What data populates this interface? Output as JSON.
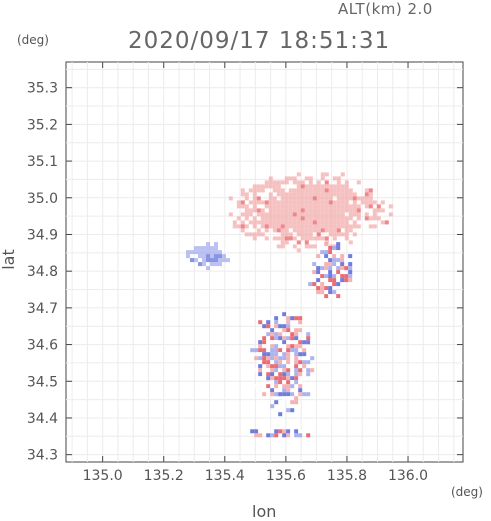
{
  "header": {
    "altitude_label": "ALT(km)  2.0",
    "timestamp": "2020/09/17 18:51:31"
  },
  "axes": {
    "x_unit": "(deg)",
    "y_unit": "(deg)",
    "xlabel": "lon",
    "ylabel": "lat"
  },
  "chart_data": {
    "type": "heatmap",
    "xlabel": "lon",
    "ylabel": "lat",
    "xlim": [
      134.88,
      136.18
    ],
    "ylim": [
      34.28,
      35.37
    ],
    "x_ticks": [
      135.0,
      135.2,
      135.4,
      135.6,
      135.8,
      136.0
    ],
    "x_tick_labels": [
      "135.0",
      "135.2",
      "135.4",
      "135.6",
      "135.8",
      "136.0"
    ],
    "y_ticks": [
      34.3,
      34.4,
      34.5,
      34.6,
      34.7,
      34.8,
      34.9,
      35.0,
      35.1,
      35.2,
      35.3
    ],
    "y_tick_labels": [
      "34.3",
      "34.4",
      "34.5",
      "34.6",
      "34.7",
      "34.8",
      "34.9",
      "35.0",
      "35.1",
      "35.2",
      "35.3"
    ],
    "grid": true,
    "colors": {
      "positive": "#f4a6a6",
      "negative": "#9ea6ec",
      "strong_positive": "#e8545a",
      "strong_negative": "#5566d8"
    },
    "echo_regions": [
      {
        "id": "north-positive",
        "lat_range": [
          34.86,
          35.08
        ],
        "lon_range": [
          135.4,
          135.94
        ],
        "sign": "positive"
      },
      {
        "id": "west-negative",
        "lat_range": [
          34.81,
          34.89
        ],
        "lon_range": [
          135.26,
          135.41
        ],
        "sign": "negative"
      },
      {
        "id": "east-mixed",
        "lat_range": [
          34.72,
          34.89
        ],
        "lon_range": [
          135.66,
          135.82
        ],
        "sign": "mixed"
      },
      {
        "id": "south-mixed",
        "lat_range": [
          34.41,
          34.71
        ],
        "lon_range": [
          135.47,
          135.69
        ],
        "sign": "mixed"
      },
      {
        "id": "bay-strip",
        "lat_range": [
          34.35,
          34.38
        ],
        "lon_range": [
          135.47,
          135.7
        ],
        "sign": "mixed"
      }
    ]
  }
}
